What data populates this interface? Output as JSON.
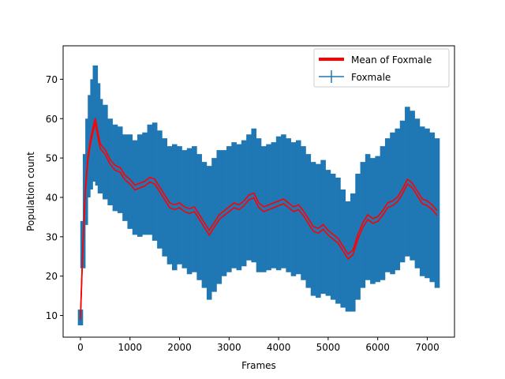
{
  "chart_data": {
    "type": "line",
    "title": "",
    "xlabel": "Frames",
    "ylabel": "Population count",
    "xlim": [
      -350,
      7550
    ],
    "ylim": [
      4.5,
      78.5
    ],
    "grid": false,
    "legend_position": "top-right",
    "x_ticks": [
      0,
      1000,
      2000,
      3000,
      4000,
      5000,
      6000,
      7000
    ],
    "y_ticks": [
      10,
      20,
      30,
      40,
      50,
      60,
      70
    ],
    "series": [
      {
        "name": "Foxmale",
        "style": "errorbar",
        "color": "#1f77b4",
        "x": [
          0,
          50,
          100,
          150,
          200,
          250,
          300,
          350,
          400,
          500,
          600,
          700,
          800,
          900,
          1000,
          1100,
          1200,
          1300,
          1400,
          1500,
          1600,
          1700,
          1800,
          1900,
          2000,
          2100,
          2200,
          2300,
          2400,
          2500,
          2600,
          2700,
          2800,
          2900,
          3000,
          3100,
          3200,
          3300,
          3400,
          3500,
          3600,
          3700,
          3800,
          3900,
          4000,
          4100,
          4200,
          4300,
          4400,
          4500,
          4600,
          4700,
          4800,
          4900,
          5000,
          5100,
          5200,
          5300,
          5400,
          5500,
          5600,
          5700,
          5800,
          5900,
          6000,
          6100,
          6200,
          6300,
          6400,
          6500,
          6600,
          6700,
          6800,
          6900,
          7000,
          7100,
          7200
        ],
        "y": [
          9.5,
          28,
          42,
          50,
          54,
          57,
          59.5,
          56,
          53,
          51.5,
          49,
          47.5,
          47,
          45,
          44,
          42.5,
          43,
          43.5,
          44.5,
          44,
          42,
          40,
          38,
          37.5,
          38,
          37,
          36.5,
          37,
          35,
          33,
          31,
          33,
          35,
          36,
          37,
          38,
          37.5,
          38.5,
          40,
          40.5,
          38,
          37,
          37.5,
          38,
          38.5,
          39,
          38,
          37,
          37.5,
          36,
          34,
          32,
          31.5,
          32.5,
          31,
          30,
          29,
          27,
          25,
          26,
          30,
          33,
          35,
          34,
          34.5,
          36,
          38,
          38.5,
          39.5,
          41.5,
          44,
          43,
          41,
          39,
          38.5,
          37.5,
          36
        ],
        "yerr": [
          2,
          6,
          9,
          10,
          12,
          13,
          14,
          13,
          12,
          12,
          11,
          11,
          11,
          11,
          12,
          12,
          13,
          13,
          14,
          15,
          15,
          15,
          15,
          16,
          15,
          15,
          16,
          16,
          16,
          16,
          17,
          17,
          17,
          16,
          16,
          16,
          16,
          16,
          16,
          17,
          17,
          16,
          16,
          16,
          17,
          17,
          17,
          17,
          17,
          17,
          17,
          17,
          17,
          17,
          16,
          16,
          16,
          15,
          14,
          15,
          16,
          16,
          16,
          16,
          16,
          17,
          17,
          18,
          18,
          18,
          19,
          19,
          19,
          19,
          19,
          19,
          19
        ]
      },
      {
        "name": "Mean of Foxmale",
        "style": "line",
        "color": "#ff0000",
        "x": [
          0,
          50,
          100,
          150,
          200,
          250,
          300,
          350,
          400,
          500,
          600,
          700,
          800,
          900,
          1000,
          1100,
          1200,
          1300,
          1400,
          1500,
          1600,
          1700,
          1800,
          1900,
          2000,
          2100,
          2200,
          2300,
          2400,
          2500,
          2600,
          2700,
          2800,
          2900,
          3000,
          3100,
          3200,
          3300,
          3400,
          3500,
          3600,
          3700,
          3800,
          3900,
          4000,
          4100,
          4200,
          4300,
          4400,
          4500,
          4600,
          4700,
          4800,
          4900,
          5000,
          5100,
          5200,
          5300,
          5400,
          5500,
          5600,
          5700,
          5800,
          5900,
          6000,
          6100,
          6200,
          6300,
          6400,
          6500,
          6600,
          6700,
          6800,
          6900,
          7000,
          7100,
          7200
        ],
        "y": [
          9.5,
          28,
          42,
          50,
          54,
          57,
          59.5,
          56,
          53,
          51.5,
          49,
          47.5,
          47,
          45,
          44,
          42.5,
          43,
          43.5,
          44.5,
          44,
          42,
          40,
          38,
          37.5,
          38,
          37,
          36.5,
          37,
          35,
          33,
          31,
          33,
          35,
          36,
          37,
          38,
          37.5,
          38.5,
          40,
          40.5,
          38,
          37,
          37.5,
          38,
          38.5,
          39,
          38,
          37,
          37.5,
          36,
          34,
          32,
          31.5,
          32.5,
          31,
          30,
          29,
          27,
          25,
          26,
          30,
          33,
          35,
          34,
          34.5,
          36,
          38,
          38.5,
          39.5,
          41.5,
          44,
          43,
          41,
          39,
          38.5,
          37.5,
          36
        ]
      }
    ]
  }
}
